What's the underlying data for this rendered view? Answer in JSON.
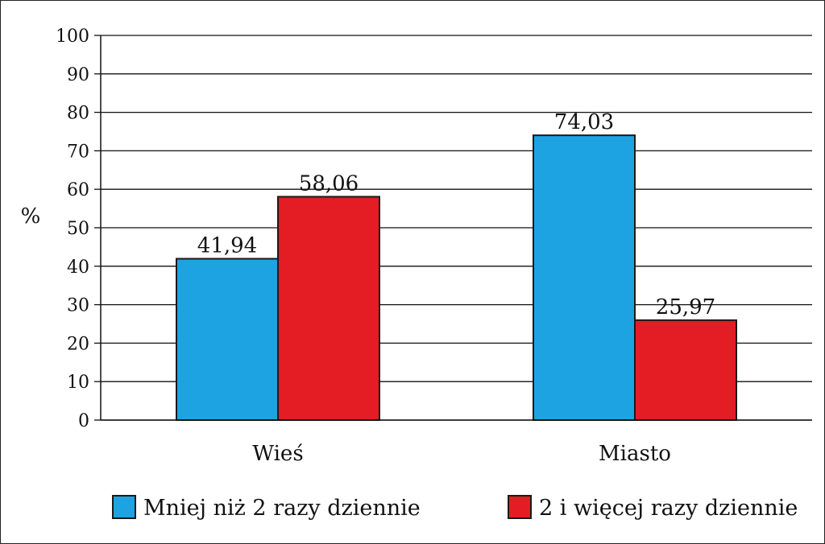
{
  "chart_data": {
    "type": "bar",
    "ylabel": "%",
    "ylim": [
      0,
      100
    ],
    "yticks": [
      0,
      10,
      20,
      30,
      40,
      50,
      60,
      70,
      80,
      90,
      100
    ],
    "grid": true,
    "legend_position": "bottom",
    "categories": [
      "Wieś",
      "Miasto"
    ],
    "series": [
      {
        "name": "Mniej niż 2 razy dziennie",
        "color": "#1ea3e2",
        "values": [
          41.94,
          74.03
        ],
        "labels": [
          "41,94",
          "74,03"
        ]
      },
      {
        "name": "2 i więcej razy dziennie",
        "color": "#e41c24",
        "values": [
          58.06,
          25.97
        ],
        "labels": [
          "58,06",
          "25,97"
        ]
      }
    ]
  }
}
